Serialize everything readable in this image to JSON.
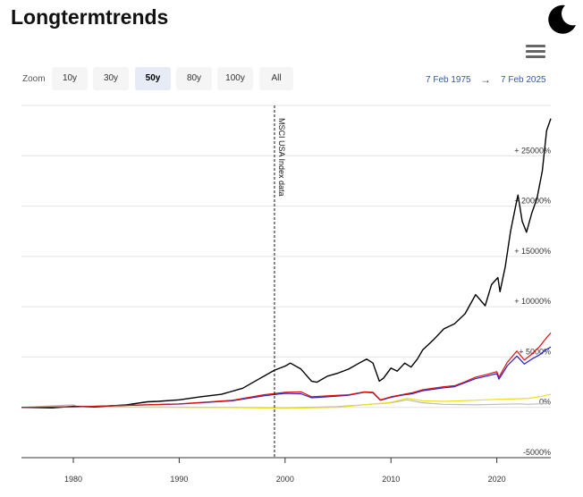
{
  "site": {
    "title": "Longtermtrends"
  },
  "icons": {
    "theme_toggle": "moon-icon",
    "menu": "hamburger-menu-icon"
  },
  "zoom": {
    "label": "Zoom",
    "buttons": [
      "10y",
      "30y",
      "50y",
      "80y",
      "100y",
      "All"
    ],
    "active": "50y"
  },
  "range": {
    "from": "7 Feb 1975",
    "to": "7 Feb 2025",
    "arrow": "→"
  },
  "chart_data": {
    "type": "line",
    "x_unit": "year",
    "xlim": [
      1975.1,
      2025.1
    ],
    "ylim": [
      -5000,
      30000
    ],
    "y_ticks": [
      -5000,
      0,
      5000,
      10000,
      15000,
      20000,
      25000
    ],
    "y_tick_labels": [
      "-5000%",
      "0%",
      "+ 5000%",
      "+ 10000%",
      "+ 15000%",
      "+ 20000%",
      "+ 25000%"
    ],
    "x_ticks": [
      1980,
      1990,
      2000,
      2010,
      2020
    ],
    "x_tick_labels": [
      "1980",
      "1990",
      "2000",
      "2010",
      "2020"
    ],
    "grid": true,
    "annotation": {
      "x": 1999,
      "text": "MSCI USA Index data"
    },
    "series": [
      {
        "color": "#000000",
        "points": [
          [
            1975.1,
            0
          ],
          [
            1978,
            -50
          ],
          [
            1980,
            100
          ],
          [
            1982,
            50
          ],
          [
            1985,
            250
          ],
          [
            1987,
            550
          ],
          [
            1988,
            600
          ],
          [
            1990,
            750
          ],
          [
            1992,
            1050
          ],
          [
            1994,
            1300
          ],
          [
            1996,
            1900
          ],
          [
            1997.5,
            2800
          ],
          [
            1999,
            3700
          ],
          [
            2000,
            4100
          ],
          [
            2000.5,
            4400
          ],
          [
            2001.5,
            3800
          ],
          [
            2002.5,
            2600
          ],
          [
            2003,
            2500
          ],
          [
            2004,
            3100
          ],
          [
            2005,
            3400
          ],
          [
            2006,
            3800
          ],
          [
            2007,
            4400
          ],
          [
            2007.7,
            4800
          ],
          [
            2008.3,
            4400
          ],
          [
            2008.9,
            2600
          ],
          [
            2009.3,
            2900
          ],
          [
            2010,
            3900
          ],
          [
            2010.6,
            3600
          ],
          [
            2011.3,
            4400
          ],
          [
            2011.9,
            4000
          ],
          [
            2012.5,
            4800
          ],
          [
            2013,
            5700
          ],
          [
            2014,
            6700
          ],
          [
            2015,
            7800
          ],
          [
            2016,
            8300
          ],
          [
            2017,
            9300
          ],
          [
            2018,
            11200
          ],
          [
            2018.9,
            10100
          ],
          [
            2019.5,
            12200
          ],
          [
            2020.1,
            12900
          ],
          [
            2020.3,
            11500
          ],
          [
            2020.8,
            14000
          ],
          [
            2021.3,
            17500
          ],
          [
            2021.8,
            20100
          ],
          [
            2022,
            21100
          ],
          [
            2022.4,
            18500
          ],
          [
            2022.8,
            17400
          ],
          [
            2023.3,
            19300
          ],
          [
            2023.8,
            20800
          ],
          [
            2024.3,
            23500
          ],
          [
            2024.7,
            27500
          ],
          [
            2025.1,
            28700
          ]
        ]
      },
      {
        "color": "#dd1111",
        "points": [
          [
            1975.1,
            0
          ],
          [
            1980,
            50
          ],
          [
            1985,
            200
          ],
          [
            1990,
            350
          ],
          [
            1995,
            700
          ],
          [
            1998,
            1250
          ],
          [
            2000,
            1500
          ],
          [
            2001.5,
            1550
          ],
          [
            2002.5,
            1050
          ],
          [
            2004,
            1150
          ],
          [
            2006,
            1250
          ],
          [
            2007.5,
            1550
          ],
          [
            2008.3,
            1500
          ],
          [
            2009,
            750
          ],
          [
            2010,
            1050
          ],
          [
            2011,
            1250
          ],
          [
            2012,
            1450
          ],
          [
            2013,
            1750
          ],
          [
            2015,
            2050
          ],
          [
            2016,
            2150
          ],
          [
            2017,
            2550
          ],
          [
            2018,
            3000
          ],
          [
            2019,
            3250
          ],
          [
            2020,
            3550
          ],
          [
            2020.2,
            3000
          ],
          [
            2021,
            4500
          ],
          [
            2021.9,
            5600
          ],
          [
            2022.6,
            4700
          ],
          [
            2023.3,
            5300
          ],
          [
            2024,
            6000
          ],
          [
            2024.6,
            6800
          ],
          [
            2025.1,
            7400
          ]
        ]
      },
      {
        "color": "#2222cc",
        "points": [
          [
            1975.1,
            0
          ],
          [
            1980,
            50
          ],
          [
            1985,
            200
          ],
          [
            1990,
            330
          ],
          [
            1995,
            650
          ],
          [
            1998,
            1150
          ],
          [
            2000,
            1400
          ],
          [
            2001.5,
            1350
          ],
          [
            2002.5,
            950
          ],
          [
            2004,
            1050
          ],
          [
            2006,
            1200
          ],
          [
            2007.5,
            1500
          ],
          [
            2008.3,
            1450
          ],
          [
            2009,
            700
          ],
          [
            2010,
            1000
          ],
          [
            2011,
            1200
          ],
          [
            2012,
            1350
          ],
          [
            2013,
            1650
          ],
          [
            2015,
            1950
          ],
          [
            2016,
            2050
          ],
          [
            2017,
            2450
          ],
          [
            2018,
            2850
          ],
          [
            2019,
            3100
          ],
          [
            2020,
            3350
          ],
          [
            2020.2,
            2800
          ],
          [
            2021,
            4150
          ],
          [
            2021.9,
            5100
          ],
          [
            2022.6,
            4300
          ],
          [
            2023.3,
            4800
          ],
          [
            2024,
            5200
          ],
          [
            2024.6,
            5700
          ],
          [
            2025.1,
            6000
          ]
        ]
      },
      {
        "color": "#eedd22",
        "points": [
          [
            1975.1,
            0
          ],
          [
            1980,
            80
          ],
          [
            1985,
            30
          ],
          [
            1990,
            0
          ],
          [
            1995,
            -20
          ],
          [
            2000,
            -100
          ],
          [
            2005,
            0
          ],
          [
            2008,
            300
          ],
          [
            2010,
            500
          ],
          [
            2011.5,
            900
          ],
          [
            2013,
            650
          ],
          [
            2015,
            600
          ],
          [
            2018,
            700
          ],
          [
            2020,
            800
          ],
          [
            2022,
            850
          ],
          [
            2023,
            900
          ],
          [
            2024,
            1050
          ],
          [
            2025.1,
            1300
          ]
        ]
      },
      {
        "color": "#bbbbbb",
        "points": [
          [
            1975.1,
            0
          ],
          [
            1980,
            250
          ],
          [
            1980.3,
            100
          ],
          [
            1985,
            40
          ],
          [
            1990,
            20
          ],
          [
            1995,
            0
          ],
          [
            2000,
            -50
          ],
          [
            2005,
            80
          ],
          [
            2008,
            300
          ],
          [
            2010,
            450
          ],
          [
            2011.5,
            750
          ],
          [
            2013,
            450
          ],
          [
            2015,
            300
          ],
          [
            2018,
            250
          ],
          [
            2020,
            300
          ],
          [
            2022,
            350
          ],
          [
            2023,
            300
          ],
          [
            2025.1,
            400
          ]
        ]
      }
    ]
  }
}
